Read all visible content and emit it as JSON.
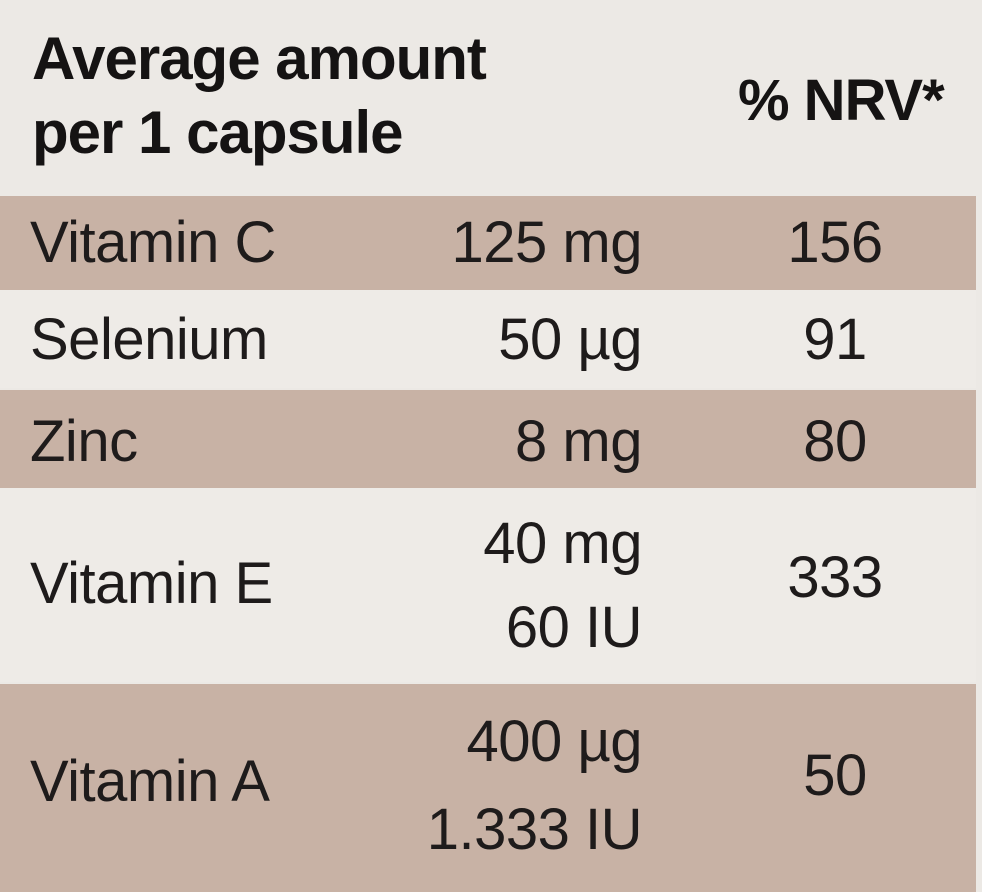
{
  "header": {
    "title_line1": "Average amount",
    "title_line2": "per 1 capsule",
    "nrv_label": "% NRV*"
  },
  "rows": [
    {
      "name": "Vitamin C",
      "amount": [
        "125 mg"
      ],
      "nrv": "156"
    },
    {
      "name": "Selenium",
      "amount": [
        "50 µg"
      ],
      "nrv": "91"
    },
    {
      "name": "Zinc",
      "amount": [
        "8 mg"
      ],
      "nrv": "80"
    },
    {
      "name": "Vitamin E",
      "amount": [
        "40 mg",
        "60 IU"
      ],
      "nrv": "333"
    },
    {
      "name": "Vitamin A",
      "amount": [
        "400 µg",
        "1.333 IU"
      ],
      "nrv": "50"
    }
  ],
  "colors": {
    "shaded_row": "#c8b2a5",
    "light_row": "#eeebe7",
    "text": "#1e1b1b"
  }
}
